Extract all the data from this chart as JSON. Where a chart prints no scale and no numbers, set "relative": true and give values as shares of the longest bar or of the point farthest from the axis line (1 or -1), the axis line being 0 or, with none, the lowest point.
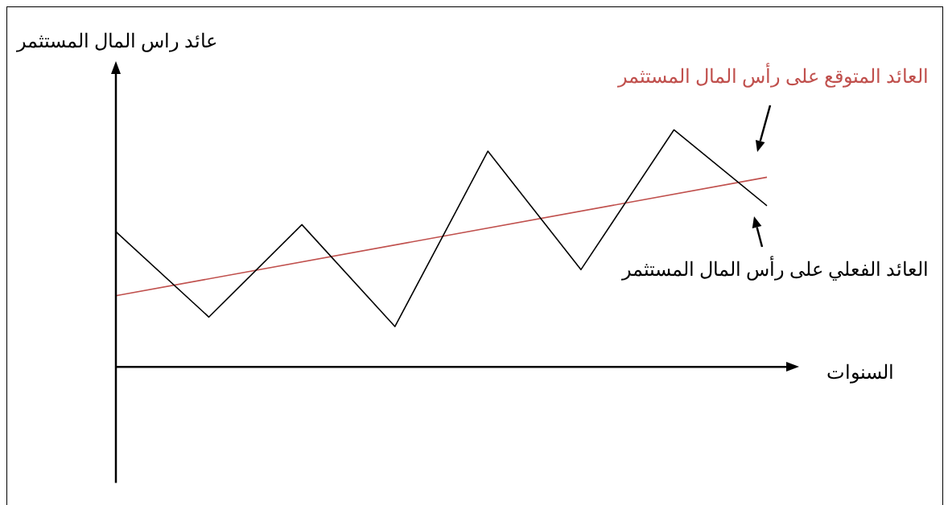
{
  "chart_data": {
    "type": "line",
    "relative": true,
    "xlabel": "السنوات",
    "ylabel": "عائد راس المال المستثمر",
    "categories": [
      null,
      null,
      null,
      null,
      null,
      null,
      null,
      null
    ],
    "series": [
      {
        "name": "العائد الفعلي على رأس المال المستثمر",
        "color": "#000000",
        "values": [
          0.57,
          0.21,
          0.6,
          0.17,
          0.91,
          0.41,
          1,
          0.68
        ]
      },
      {
        "name": "العائد المتوقع على رأس المال المستثمر",
        "color": "#c0504d",
        "values": [
          0.3,
          null,
          null,
          null,
          null,
          null,
          null,
          0.8
        ]
      }
    ],
    "grid": false,
    "marker": "none",
    "line_style": "solid"
  }
}
